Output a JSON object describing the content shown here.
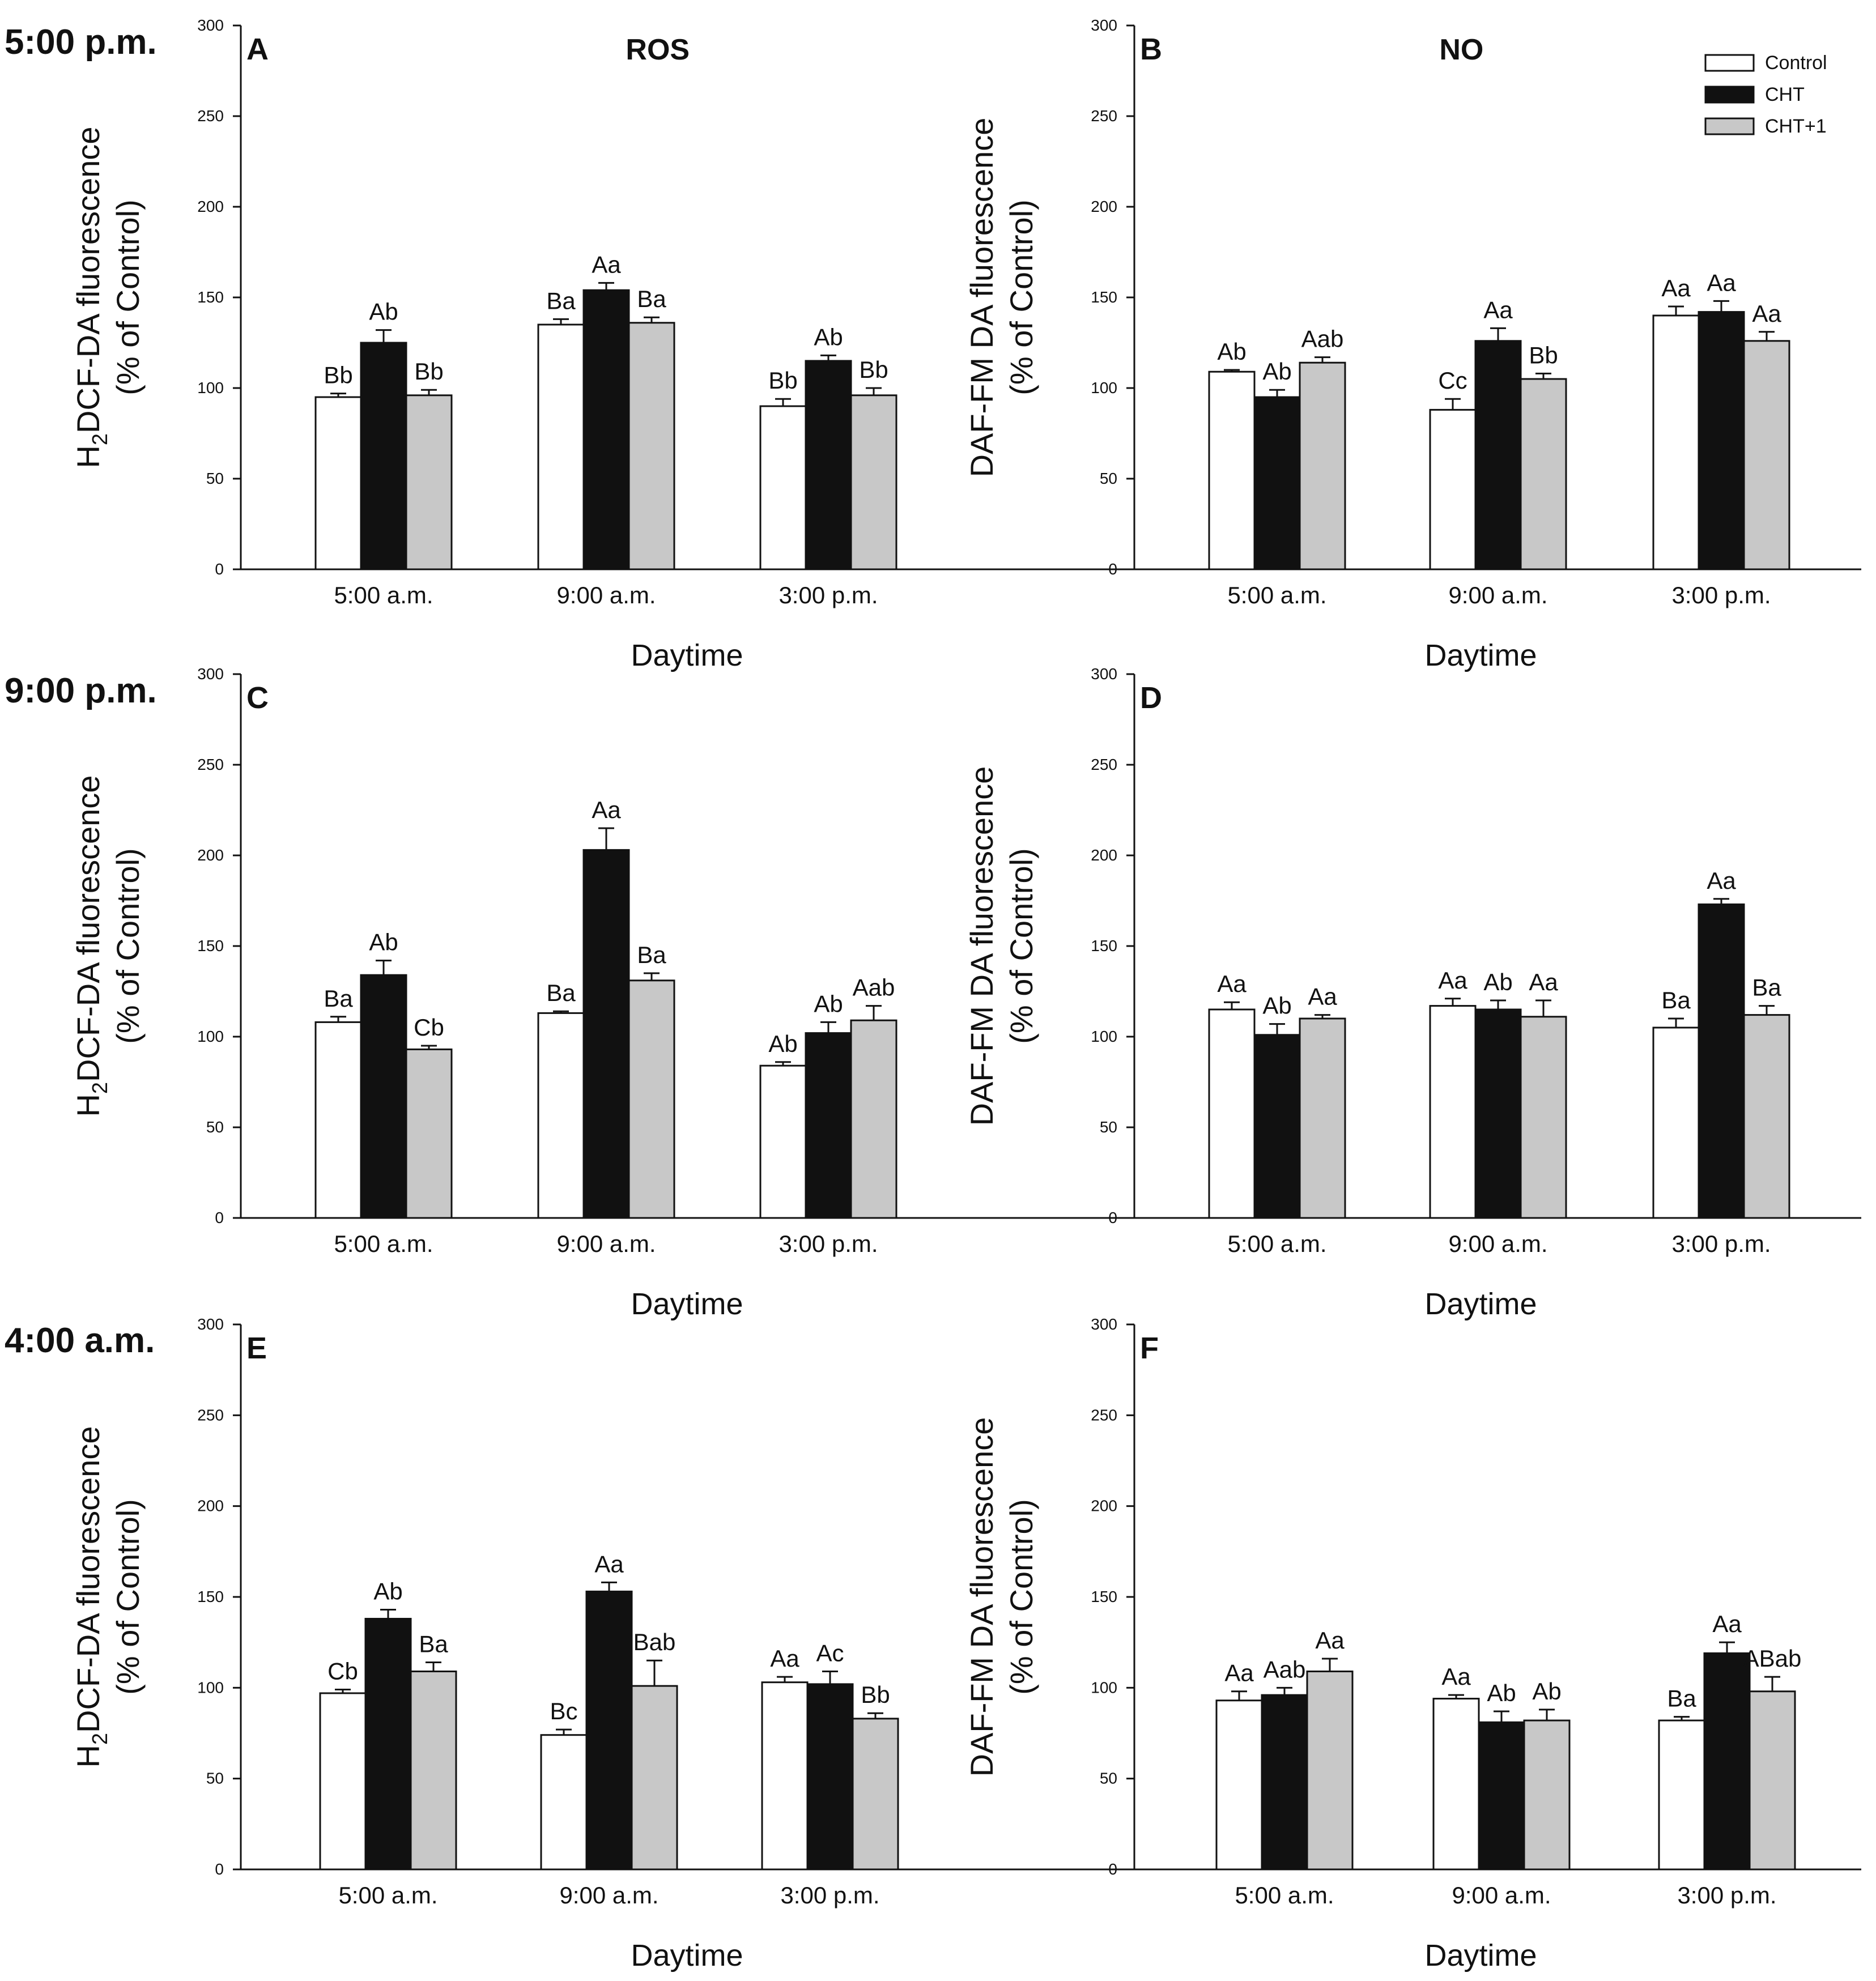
{
  "figure": {
    "row_labels": [
      "5:00 p.m.",
      "9:00 p.m.",
      "4:00 a.m."
    ],
    "legend": [
      {
        "name": "Control",
        "color": "#ffffff"
      },
      {
        "name": "CHT",
        "color": "#111111"
      },
      {
        "name": "CHT+1",
        "color": "#c8c8c8"
      }
    ]
  },
  "chart_data": [
    {
      "type": "bar",
      "panel": "A",
      "title": "ROS",
      "ylabel_line1": "H2DCF-DA fluorescence",
      "ylabel_line2": "(% of Control)",
      "xlabel": "Daytime",
      "categories": [
        "5:00 a.m.",
        "9:00 a.m.",
        "3:00 p.m."
      ],
      "ylim": [
        0,
        300
      ],
      "yticks": [
        0,
        50,
        100,
        150,
        200,
        250,
        300
      ],
      "series": [
        {
          "name": "Control",
          "values": [
            95,
            135,
            90
          ],
          "errors": [
            2,
            3,
            4
          ],
          "labels": [
            "Bb",
            "Ba",
            "Bb"
          ]
        },
        {
          "name": "CHT",
          "values": [
            125,
            154,
            115
          ],
          "errors": [
            7,
            4,
            3
          ],
          "labels": [
            "Ab",
            "Aa",
            "Ab"
          ]
        },
        {
          "name": "CHT+1",
          "values": [
            96,
            136,
            96
          ],
          "errors": [
            3,
            3,
            4
          ],
          "labels": [
            "Bb",
            "Ba",
            "Bb"
          ]
        }
      ]
    },
    {
      "type": "bar",
      "panel": "B",
      "title": "NO",
      "ylabel_line1": "DAF-FM DA fluorescence",
      "ylabel_line2": "(% of Control)",
      "xlabel": "Daytime",
      "categories": [
        "5:00 a.m.",
        "9:00 a.m.",
        "3:00 p.m."
      ],
      "ylim": [
        0,
        300
      ],
      "yticks": [
        0,
        50,
        100,
        150,
        200,
        250,
        300
      ],
      "series": [
        {
          "name": "Control",
          "values": [
            109,
            88,
            140
          ],
          "errors": [
            1,
            6,
            5
          ],
          "labels": [
            "Ab",
            "Cc",
            "Aa"
          ]
        },
        {
          "name": "CHT",
          "values": [
            95,
            126,
            142
          ],
          "errors": [
            4,
            7,
            6
          ],
          "labels": [
            "Ab",
            "Aa",
            "Aa"
          ]
        },
        {
          "name": "CHT+1",
          "values": [
            114,
            105,
            126
          ],
          "errors": [
            3,
            3,
            5
          ],
          "labels": [
            "Aab",
            "Bb",
            "Aa"
          ]
        }
      ]
    },
    {
      "type": "bar",
      "panel": "C",
      "title": "",
      "ylabel_line1": "H2DCF-DA fluorescence",
      "ylabel_line2": "(% of Control)",
      "xlabel": "Daytime",
      "categories": [
        "5:00 a.m.",
        "9:00 a.m.",
        "3:00 p.m."
      ],
      "ylim": [
        0,
        300
      ],
      "yticks": [
        0,
        50,
        100,
        150,
        200,
        250,
        300
      ],
      "series": [
        {
          "name": "Control",
          "values": [
            108,
            113,
            84
          ],
          "errors": [
            3,
            1,
            2
          ],
          "labels": [
            "Ba",
            "Ba",
            "Ab"
          ]
        },
        {
          "name": "CHT",
          "values": [
            134,
            203,
            102
          ],
          "errors": [
            8,
            12,
            6
          ],
          "labels": [
            "Ab",
            "Aa",
            "Ab"
          ]
        },
        {
          "name": "CHT+1",
          "values": [
            93,
            131,
            109
          ],
          "errors": [
            2,
            4,
            8
          ],
          "labels": [
            "Cb",
            "Ba",
            "Aab"
          ]
        }
      ]
    },
    {
      "type": "bar",
      "panel": "D",
      "title": "",
      "ylabel_line1": "DAF-FM DA fluorescence",
      "ylabel_line2": "(% of Control)",
      "xlabel": "Daytime",
      "categories": [
        "5:00 a.m.",
        "9:00 a.m.",
        "3:00 p.m."
      ],
      "ylim": [
        0,
        300
      ],
      "yticks": [
        0,
        50,
        100,
        150,
        200,
        250,
        300
      ],
      "series": [
        {
          "name": "Control",
          "values": [
            115,
            117,
            105
          ],
          "errors": [
            4,
            4,
            5
          ],
          "labels": [
            "Aa",
            "Aa",
            "Ba"
          ]
        },
        {
          "name": "CHT",
          "values": [
            101,
            115,
            173
          ],
          "errors": [
            6,
            5,
            3
          ],
          "labels": [
            "Ab",
            "Ab",
            "Aa"
          ]
        },
        {
          "name": "CHT+1",
          "values": [
            110,
            111,
            112
          ],
          "errors": [
            2,
            9,
            5
          ],
          "labels": [
            "Aa",
            "Aa",
            "Ba"
          ]
        }
      ]
    },
    {
      "type": "bar",
      "panel": "E",
      "title": "",
      "ylabel_line1": "H2DCF-DA fluorescence",
      "ylabel_line2": "(% of Control)",
      "xlabel": "Daytime",
      "categories": [
        "5:00 a.m.",
        "9:00 a.m.",
        "3:00 p.m."
      ],
      "ylim": [
        0,
        300
      ],
      "yticks": [
        0,
        50,
        100,
        150,
        200,
        250,
        300
      ],
      "series": [
        {
          "name": "Control",
          "values": [
            97,
            74,
            103
          ],
          "errors": [
            2,
            3,
            3
          ],
          "labels": [
            "Cb",
            "Bc",
            "Aa"
          ]
        },
        {
          "name": "CHT",
          "values": [
            138,
            153,
            102
          ],
          "errors": [
            5,
            5,
            7
          ],
          "labels": [
            "Ab",
            "Aa",
            "Ac"
          ]
        },
        {
          "name": "CHT+1",
          "values": [
            109,
            101,
            83
          ],
          "errors": [
            5,
            14,
            3
          ],
          "labels": [
            "Ba",
            "Bab",
            "Bb"
          ]
        }
      ]
    },
    {
      "type": "bar",
      "panel": "F",
      "title": "",
      "ylabel_line1": "DAF-FM DA fluorescence",
      "ylabel_line2": "(% of Control)",
      "xlabel": "Daytime",
      "categories": [
        "5:00 a.m.",
        "9:00 a.m.",
        "3:00 p.m."
      ],
      "ylim": [
        0,
        300
      ],
      "yticks": [
        0,
        50,
        100,
        150,
        200,
        250,
        300
      ],
      "series": [
        {
          "name": "Control",
          "values": [
            93,
            94,
            82
          ],
          "errors": [
            5,
            2,
            2
          ],
          "labels": [
            "Aa",
            "Aa",
            "Ba"
          ]
        },
        {
          "name": "CHT",
          "values": [
            96,
            81,
            119
          ],
          "errors": [
            4,
            6,
            6
          ],
          "labels": [
            "Aab",
            "Ab",
            "Aa"
          ]
        },
        {
          "name": "CHT+1",
          "values": [
            109,
            82,
            98
          ],
          "errors": [
            7,
            6,
            8
          ],
          "labels": [
            "Aa",
            "Ab",
            "ABab"
          ]
        }
      ]
    }
  ]
}
